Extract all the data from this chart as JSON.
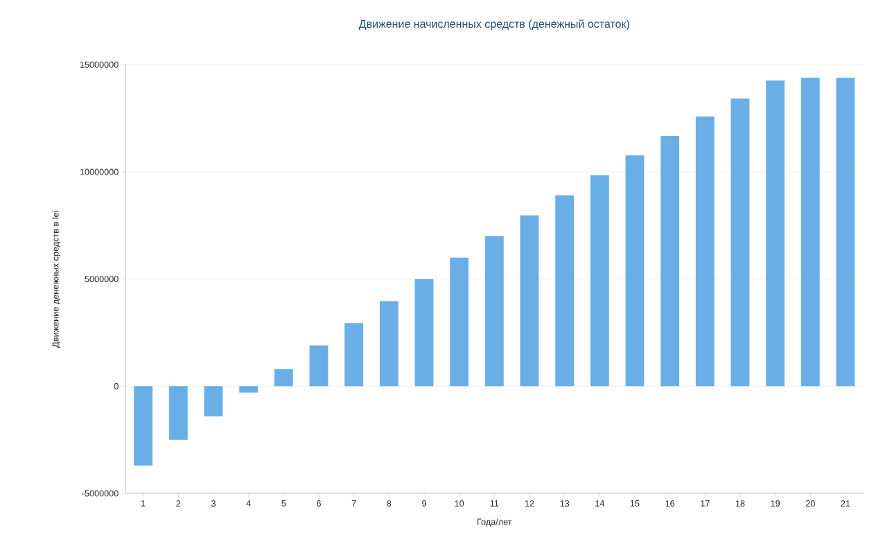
{
  "chart_data": {
    "type": "bar",
    "title": "Движение начисленных средств (денежный остаток)",
    "xlabel": "Года/лет",
    "ylabel": "Движение денежных средств в lei",
    "categories": [
      "1",
      "2",
      "3",
      "4",
      "5",
      "6",
      "7",
      "8",
      "9",
      "10",
      "11",
      "12",
      "13",
      "14",
      "15",
      "16",
      "17",
      "18",
      "19",
      "20",
      "21"
    ],
    "values": [
      -3700000,
      -2500000,
      -1400000,
      -300000,
      800000,
      1900000,
      2940000,
      3970000,
      5000000,
      6000000,
      7000000,
      7970000,
      8900000,
      9840000,
      10770000,
      11680000,
      12580000,
      13420000,
      14260000,
      14390000,
      14390000
    ],
    "color": "#6aaee8",
    "ylim": [
      -5000000,
      15000000
    ],
    "yticks": [
      -5000000,
      0,
      5000000,
      10000000,
      15000000
    ],
    "grid": "y"
  }
}
